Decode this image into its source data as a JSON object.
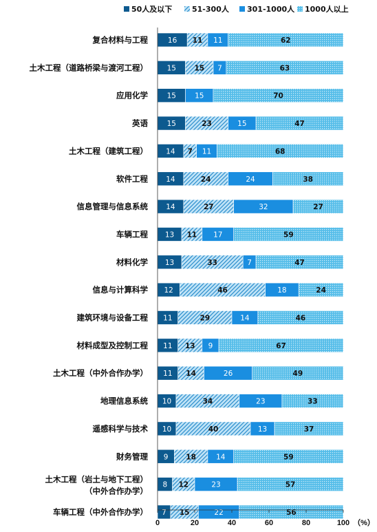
{
  "chart_data": {
    "type": "bar",
    "orientation": "horizontal",
    "stacked": true,
    "categories": [
      "复合材料与工程",
      "土木工程（道路桥梁与渡河工程）",
      "应用化学",
      "英语",
      "土木工程（建筑工程）",
      "软件工程",
      "信息管理与信息系统",
      "车辆工程",
      "材料化学",
      "信息与计算科学",
      "建筑环境与设备工程",
      "材料成型及控制工程",
      "土木工程（中外合作办学）",
      "地理信息系统",
      "遥感科学与技术",
      "财务管理",
      [
        "土木工程（岩土与地下工程）",
        "（中外合作办学）"
      ],
      "车辆工程（中外合作办学）"
    ],
    "series": [
      {
        "name": "50人及以下",
        "color": "#0d5a8f",
        "pattern": "solid",
        "values": [
          16,
          15,
          15,
          15,
          14,
          14,
          14,
          13,
          13,
          12,
          11,
          11,
          11,
          10,
          10,
          9,
          8,
          7
        ]
      },
      {
        "name": "51-300人",
        "color": "#2a8fd0",
        "pattern": "diagonal-hatch",
        "values": [
          11,
          15,
          0,
          23,
          7,
          24,
          27,
          11,
          33,
          46,
          29,
          13,
          14,
          34,
          40,
          18,
          12,
          15
        ]
      },
      {
        "name": "301-1000人",
        "color": "#1a8ee0",
        "pattern": "solid",
        "values": [
          11,
          7,
          15,
          15,
          11,
          24,
          32,
          17,
          7,
          18,
          14,
          9,
          26,
          23,
          13,
          14,
          23,
          22
        ]
      },
      {
        "name": "1000人以上",
        "color": "#6cc6ee",
        "pattern": "dotted",
        "values": [
          62,
          63,
          70,
          47,
          68,
          38,
          27,
          59,
          47,
          24,
          46,
          67,
          49,
          33,
          37,
          59,
          57,
          56
        ]
      }
    ],
    "xlim": [
      0,
      100
    ],
    "xticks": [
      "0",
      "20",
      "40",
      "60",
      "80",
      "100"
    ],
    "xunit": "（%）",
    "legend_position": "top",
    "grid": false
  }
}
